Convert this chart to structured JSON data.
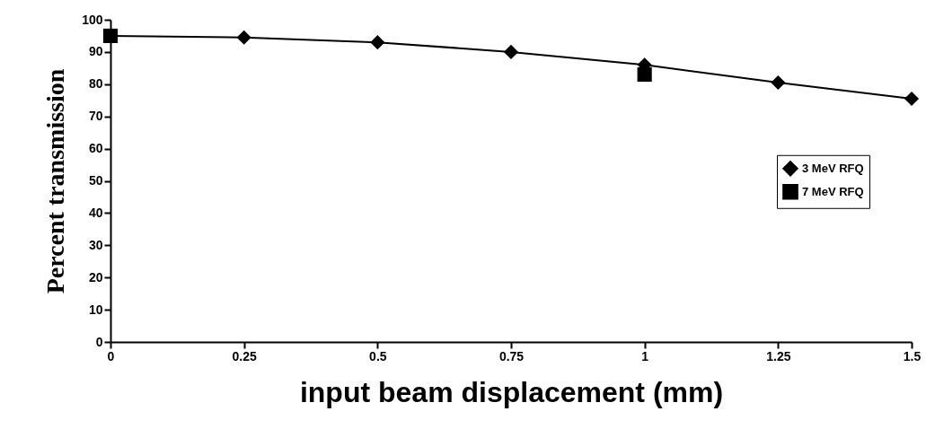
{
  "chart_data": {
    "type": "line",
    "xlabel": "input beam displacement (mm)",
    "ylabel": "Percent transmission",
    "x": [
      0,
      0.25,
      0.5,
      0.75,
      1,
      1.25,
      1.5
    ],
    "series": [
      {
        "name": "3 MeV RFQ",
        "color": "#000000",
        "marker": "diamond",
        "values": [
          95,
          94.5,
          93,
          90,
          86,
          80.5,
          75.5
        ]
      },
      {
        "name": "7 MeV RFQ",
        "color": "#000000",
        "marker": "square",
        "type": "scatter",
        "x": [
          0,
          1
        ],
        "values": [
          95,
          83
        ]
      }
    ],
    "xlim": [
      0,
      1.5
    ],
    "xticks": [
      0,
      0.25,
      0.5,
      0.75,
      1,
      1.25,
      1.5
    ],
    "ylim": [
      0,
      100
    ],
    "yticks": [
      0,
      10,
      20,
      30,
      40,
      50,
      60,
      70,
      80,
      90,
      100
    ],
    "grid": false,
    "legend": "right",
    "line_style": "solid"
  }
}
